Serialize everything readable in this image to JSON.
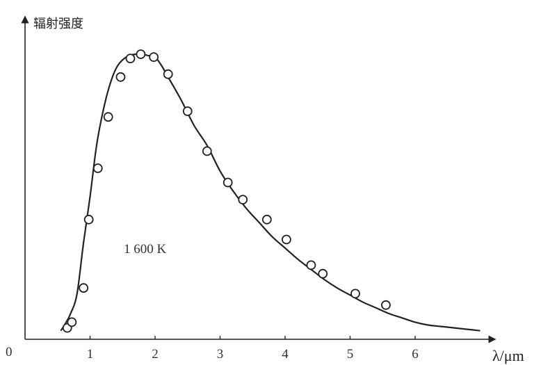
{
  "chart_data": {
    "type": "scatter",
    "ylabel": "辐射强度",
    "xlabel": "λ/μm",
    "origin_label": "0",
    "annotation": "1 600 K",
    "xlim": [
      0,
      7
    ],
    "ylim": [
      0,
      1.05
    ],
    "x_ticks": [
      "1",
      "2",
      "3",
      "4",
      "5",
      "6"
    ],
    "grid": false,
    "series": [
      {
        "style": "line",
        "x": [
          0.55,
          0.62,
          0.7,
          0.8,
          0.9,
          1.0,
          1.1,
          1.2,
          1.3,
          1.4,
          1.5,
          1.6,
          1.7,
          1.8,
          1.9,
          2.0,
          2.1,
          2.2,
          2.4,
          2.6,
          2.8,
          3.0,
          3.2,
          3.4,
          3.6,
          3.8,
          4.0,
          4.2,
          4.4,
          4.6,
          4.8,
          5.0,
          5.2,
          5.4,
          5.6,
          5.8,
          6.0,
          6.2,
          6.4,
          6.6,
          6.8,
          7.0
        ],
        "y": [
          0.03,
          0.055,
          0.09,
          0.16,
          0.34,
          0.5,
          0.68,
          0.8,
          0.89,
          0.95,
          0.98,
          0.995,
          1.0,
          1.0,
          0.995,
          0.99,
          0.96,
          0.92,
          0.84,
          0.75,
          0.68,
          0.59,
          0.52,
          0.46,
          0.41,
          0.36,
          0.32,
          0.28,
          0.245,
          0.21,
          0.18,
          0.155,
          0.13,
          0.11,
          0.09,
          0.075,
          0.06,
          0.05,
          0.045,
          0.04,
          0.035,
          0.03
        ]
      },
      {
        "style": "markers",
        "x": [
          0.65,
          0.72,
          0.9,
          0.98,
          1.12,
          1.28,
          1.47,
          1.62,
          1.78,
          1.98,
          2.2,
          2.5,
          2.8,
          3.12,
          3.35,
          3.72,
          4.02,
          4.4,
          4.58,
          5.08,
          5.55
        ],
        "y": [
          0.04,
          0.06,
          0.18,
          0.42,
          0.6,
          0.78,
          0.92,
          0.985,
          1.0,
          0.99,
          0.93,
          0.8,
          0.66,
          0.55,
          0.49,
          0.42,
          0.35,
          0.26,
          0.23,
          0.16,
          0.12
        ]
      }
    ]
  }
}
